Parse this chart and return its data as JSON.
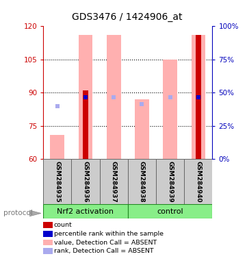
{
  "title": "GDS3476 / 1424906_at",
  "samples": [
    "GSM284935",
    "GSM284936",
    "GSM284937",
    "GSM284938",
    "GSM284939",
    "GSM284940"
  ],
  "group_labels": [
    "Nrf2 activation",
    "control"
  ],
  "group_split": 3,
  "ylim_left": [
    60,
    120
  ],
  "ylim_right": [
    0,
    100
  ],
  "yticks_left": [
    60,
    75,
    90,
    105,
    120
  ],
  "yticks_right": [
    0,
    25,
    50,
    75,
    100
  ],
  "left_axis_color": "#cc0000",
  "right_axis_color": "#0000bb",
  "pink_bar_color": "#ffb0b0",
  "red_bar_color": "#cc0000",
  "blue_sq_color": "#aaaaee",
  "dark_blue_color": "#0000cc",
  "value_absent": [
    71,
    116,
    116,
    87,
    105,
    116
  ],
  "rank_absent": [
    84,
    88,
    88,
    85,
    88,
    88
  ],
  "count_present": [
    0,
    91,
    0,
    0,
    0,
    116
  ],
  "percentile_present": [
    0,
    88,
    0,
    0,
    0,
    88
  ],
  "sample_bg": "#cccccc",
  "group_bg": "#88ee88",
  "group_border": "#228822",
  "legend_colors": [
    "#cc0000",
    "#0000cc",
    "#ffb0b0",
    "#aaaaee"
  ],
  "legend_labels": [
    "count",
    "percentile rank within the sample",
    "value, Detection Call = ABSENT",
    "rank, Detection Call = ABSENT"
  ],
  "pink_bar_width": 0.5,
  "red_bar_width": 0.18
}
